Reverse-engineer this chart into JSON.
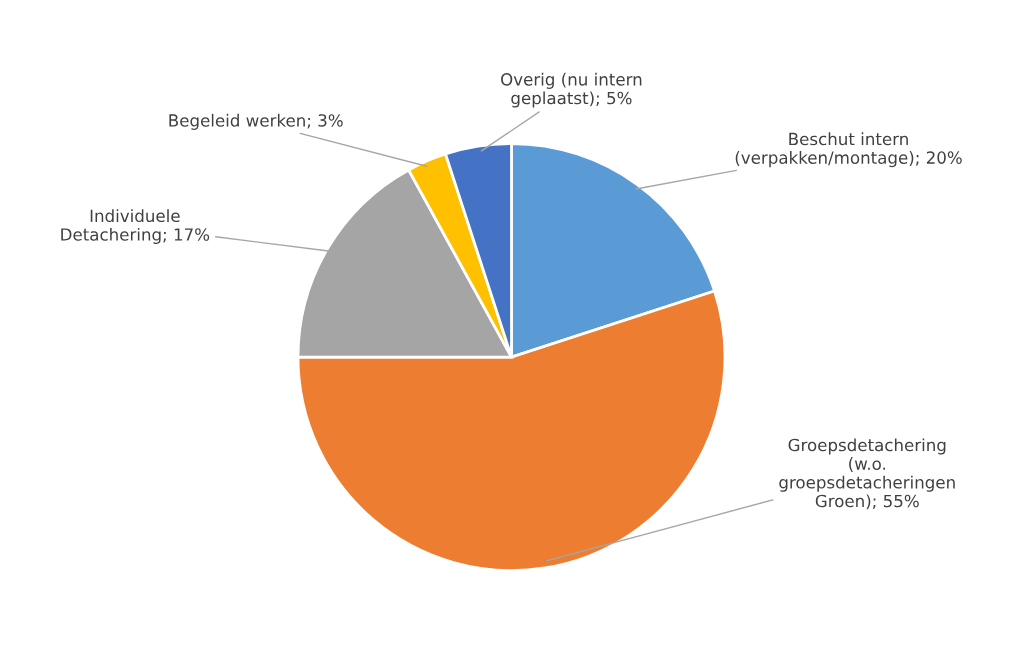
{
  "chart_data": {
    "type": "pie",
    "categories": [
      "Beschut intern\n(verpakken/montage)",
      "Groepsdetachering\n(w.o.\ngroepsdetacheringen\nGroen)",
      "Individuele\nDetachering",
      "Begeleid werken",
      "Overig (nu intern\ngeplaatst)"
    ],
    "values": [
      20,
      55,
      17,
      3,
      5
    ],
    "value_labels": [
      "20%",
      "55%",
      "17%",
      "3%",
      "5%"
    ],
    "colors": [
      "#5b9bd5",
      "#ed7d31",
      "#a5a5a5",
      "#ffc000",
      "#4472c4"
    ]
  }
}
